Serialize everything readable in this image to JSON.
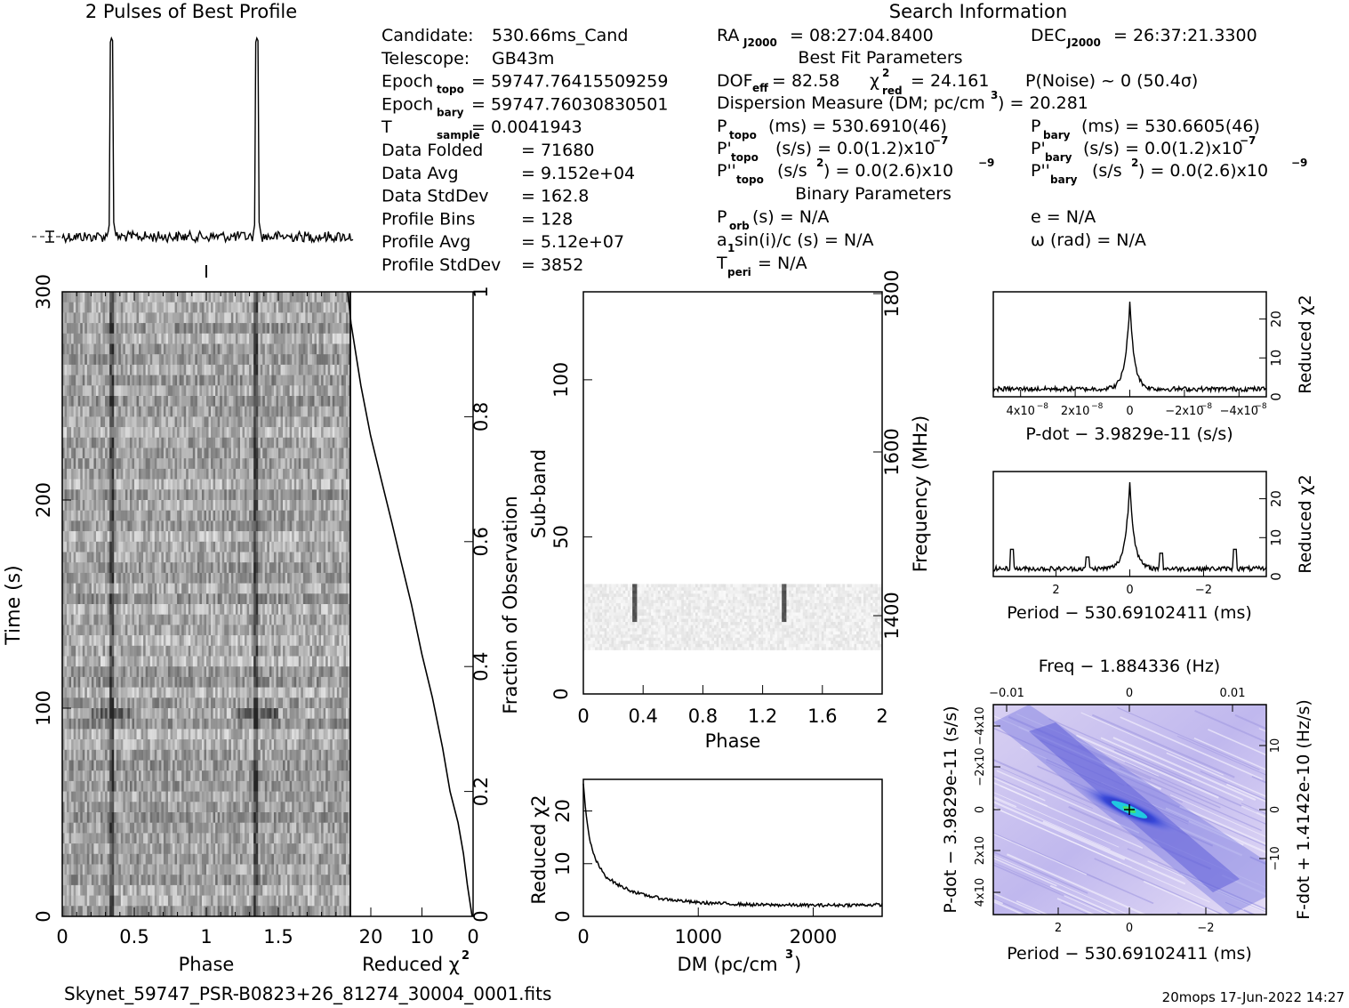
{
  "header": {
    "profile_title": "2 Pulses of Best Profile",
    "search_title": "Search Information",
    "best_fit_title": "Best Fit Parameters",
    "binary_title": "Binary Parameters"
  },
  "info_left": [
    {
      "label": "Candidate:",
      "value": "530.66ms_Cand"
    },
    {
      "label": "Telescope:",
      "value": "GB43m"
    },
    {
      "label": "Epoch",
      "sub": "topo",
      "value": "= 59747.76415509259"
    },
    {
      "label": "Epoch",
      "sub": "bary",
      "value": "= 59747.76030830501"
    },
    {
      "label": "T",
      "sub": "sample",
      "value": "=   0.0041943"
    },
    {
      "label": "Data Folded",
      "value": "=   71680"
    },
    {
      "label": "Data Avg",
      "value": "=   9.152e+04"
    },
    {
      "label": "Data StdDev",
      "value": "=   162.8"
    },
    {
      "label": "Profile Bins",
      "value": "=   128"
    },
    {
      "label": "Profile Avg",
      "value": "=   5.12e+07"
    },
    {
      "label": "Profile StdDev",
      "value": "=   3852"
    }
  ],
  "search_info": {
    "ra": "= 08:27:04.8400",
    "dec": "= 26:37:21.3300",
    "dof": "= 82.58",
    "chi2": "= 24.161",
    "pnoise": "P(Noise) ~ 0    (50.4σ)",
    "dm": "Dispersion Measure (DM; pc/cm",
    "dm_value": ") = 20.281",
    "p_topo": "(ms) =   530.6910(46)",
    "p_bary": "(ms) =   530.6605(46)",
    "pd_topo": "(s/s) = 0.0(1.2)x10",
    "pd_bary": "(s/s) = 0.0(1.2)x10",
    "pdd_topo": "(s/s",
    "pdd_topo_val": ") = 0.0(2.6)x10",
    "pdd_bary": "(s/s",
    "pdd_bary_val": ") = 0.0(2.6)x10",
    "exp7": "−7",
    "exp9": "−9",
    "porb": "(s) = N/A",
    "e": "e = N/A",
    "a1": "a",
    "a1_rest": "sin(i)/c (s) = N/A",
    "omega": "ω (rad) = N/A",
    "tperi": "= N/A"
  },
  "footer": {
    "filename": "Skynet_59747_PSR-B0823+26_81274_30004_0001.fits",
    "stamp": "20mops 17-Jun-2022 14:27"
  },
  "chart_data": [
    {
      "type": "line",
      "title": "2 Pulses of Best Profile",
      "x": "phase 0-2",
      "peaks_at_phase": [
        0.34,
        1.34
      ]
    },
    {
      "type": "heatmap",
      "xlabel": "Phase",
      "ylabel": "Time (s)",
      "xlim": [
        0,
        2
      ],
      "ylim": [
        0,
        300
      ],
      "x_ticks": [
        "0",
        "0.5",
        "1",
        "1.5"
      ],
      "y_ticks": [
        "0",
        "100",
        "200",
        "300"
      ],
      "pulse_phase": [
        0.34,
        1.34
      ]
    },
    {
      "type": "line",
      "xlabel": "Reduced χ2",
      "ylabel": "Fraction of Observation",
      "x_ticks": [
        "20",
        "10",
        "0"
      ],
      "y_ticks": [
        "0",
        "0.2",
        "0.4",
        "0.6",
        "0.8",
        "1"
      ],
      "xlim": [
        24,
        0
      ],
      "ylim": [
        0,
        1
      ],
      "x": [
        0.2,
        1.0,
        2.0,
        3.0,
        4.5,
        6.0,
        8.0,
        10.0,
        12.0,
        14.0,
        16.0,
        18.0,
        20.0,
        22.0,
        24.0,
        24.5
      ],
      "y": [
        0.0,
        0.05,
        0.1,
        0.15,
        0.2,
        0.27,
        0.35,
        0.42,
        0.5,
        0.57,
        0.63,
        0.7,
        0.77,
        0.85,
        0.95,
        1.0
      ]
    },
    {
      "type": "heatmap",
      "xlabel": "Phase",
      "ylabel": "Sub-band",
      "y2label": "Frequency (MHz)",
      "xlim": [
        0,
        2
      ],
      "ylim": [
        0,
        128
      ],
      "x_ticks": [
        "0",
        "0.4",
        "0.8",
        "1.2",
        "1.6",
        "2"
      ],
      "y_ticks": [
        "0",
        "50",
        "100"
      ],
      "y2_ticks": [
        "1400",
        "1600",
        "1800"
      ],
      "occupied_subbands": [
        14,
        35
      ],
      "pulse_phase": [
        0.34,
        1.34
      ]
    },
    {
      "type": "line",
      "xlabel": "DM (pc/cm",
      "ylabel": "Reduced χ2",
      "x_ticks": [
        "0",
        "1000",
        "2000"
      ],
      "y_ticks": [
        "0",
        "10",
        "20"
      ],
      "xlim": [
        0,
        2600
      ],
      "ylim": [
        0,
        26
      ],
      "x": [
        0,
        20,
        50,
        100,
        150,
        200,
        300,
        400,
        500,
        700,
        1000,
        1500,
        2000,
        2600
      ],
      "y": [
        25,
        20,
        15,
        11,
        9,
        7.5,
        6,
        5,
        4.2,
        3.3,
        2.6,
        2.2,
        2.1,
        2.2
      ]
    },
    {
      "type": "line",
      "xlabel": "P-dot − 3.9829e-11 (s/s)",
      "ylabel": "Reduced χ2",
      "x_ticks": [
        "4x10",
        "2x10",
        "0",
        "−2x10",
        "−4x10"
      ],
      "x_tick_exp": "−8",
      "y_ticks": [
        "0",
        "10",
        "20"
      ],
      "xlim": [
        5e-08,
        -5e-08
      ],
      "ylim": [
        0,
        27
      ],
      "peak": {
        "x": 0,
        "y": 24.2
      },
      "baseline": 2
    },
    {
      "type": "line",
      "xlabel": "Period − 530.69102411 (ms)",
      "ylabel": "Reduced χ2",
      "x_ticks": [
        "2",
        "0",
        "−2"
      ],
      "y_ticks": [
        "0",
        "10",
        "20"
      ],
      "xlim": [
        3.7,
        -3.7
      ],
      "ylim": [
        0,
        27
      ],
      "peak": {
        "x": 0,
        "y": 24.2
      },
      "side_peaks": [
        {
          "x": 3.2,
          "y": 7
        },
        {
          "x": 1.15,
          "y": 5
        },
        {
          "x": -0.85,
          "y": 6
        },
        {
          "x": -2.85,
          "y": 7
        }
      ],
      "baseline": 2
    },
    {
      "type": "heatmap",
      "title": "Freq − 1.884336 (Hz)",
      "xlabel": "Period − 530.69102411 (ms)",
      "ylabel": "P-dot − 3.9829e-11 (s/s)",
      "y2label": "F-dot + 1.4142e-10 (Hz/s)",
      "x_ticks": [
        "2",
        "0",
        "−2"
      ],
      "top_ticks": [
        "−0.01",
        "0",
        "0.01"
      ],
      "y_ticks": [
        "4x10",
        "2x10",
        "0",
        "−2x10",
        "−4x10"
      ],
      "y_tick_exp": "−8",
      "y2_ticks": [
        "−10",
        "0",
        "10"
      ],
      "y2_tick_exp": "−4",
      "peak": {
        "x": 0,
        "y": 0
      }
    }
  ]
}
